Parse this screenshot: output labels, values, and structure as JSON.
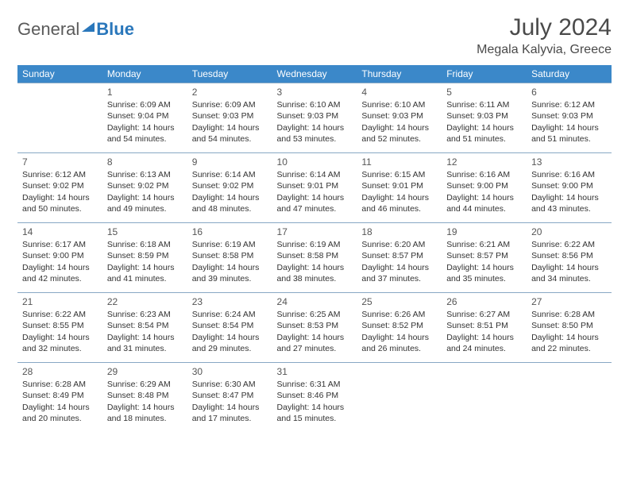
{
  "logo": {
    "text1": "General",
    "text2": "Blue"
  },
  "title": "July 2024",
  "location": "Megala Kalyvia, Greece",
  "colors": {
    "header_bg": "#3b88c9",
    "header_text": "#ffffff",
    "cell_border": "#88a8c4",
    "text": "#333333",
    "logo_gray": "#5a5a5a",
    "logo_blue": "#2a77bb"
  },
  "weekdays": [
    "Sunday",
    "Monday",
    "Tuesday",
    "Wednesday",
    "Thursday",
    "Friday",
    "Saturday"
  ],
  "weeks": [
    [
      null,
      {
        "d": "1",
        "rise": "6:09 AM",
        "set": "9:04 PM",
        "dl": "14 hours and 54 minutes."
      },
      {
        "d": "2",
        "rise": "6:09 AM",
        "set": "9:03 PM",
        "dl": "14 hours and 54 minutes."
      },
      {
        "d": "3",
        "rise": "6:10 AM",
        "set": "9:03 PM",
        "dl": "14 hours and 53 minutes."
      },
      {
        "d": "4",
        "rise": "6:10 AM",
        "set": "9:03 PM",
        "dl": "14 hours and 52 minutes."
      },
      {
        "d": "5",
        "rise": "6:11 AM",
        "set": "9:03 PM",
        "dl": "14 hours and 51 minutes."
      },
      {
        "d": "6",
        "rise": "6:12 AM",
        "set": "9:03 PM",
        "dl": "14 hours and 51 minutes."
      }
    ],
    [
      {
        "d": "7",
        "rise": "6:12 AM",
        "set": "9:02 PM",
        "dl": "14 hours and 50 minutes."
      },
      {
        "d": "8",
        "rise": "6:13 AM",
        "set": "9:02 PM",
        "dl": "14 hours and 49 minutes."
      },
      {
        "d": "9",
        "rise": "6:14 AM",
        "set": "9:02 PM",
        "dl": "14 hours and 48 minutes."
      },
      {
        "d": "10",
        "rise": "6:14 AM",
        "set": "9:01 PM",
        "dl": "14 hours and 47 minutes."
      },
      {
        "d": "11",
        "rise": "6:15 AM",
        "set": "9:01 PM",
        "dl": "14 hours and 46 minutes."
      },
      {
        "d": "12",
        "rise": "6:16 AM",
        "set": "9:00 PM",
        "dl": "14 hours and 44 minutes."
      },
      {
        "d": "13",
        "rise": "6:16 AM",
        "set": "9:00 PM",
        "dl": "14 hours and 43 minutes."
      }
    ],
    [
      {
        "d": "14",
        "rise": "6:17 AM",
        "set": "9:00 PM",
        "dl": "14 hours and 42 minutes."
      },
      {
        "d": "15",
        "rise": "6:18 AM",
        "set": "8:59 PM",
        "dl": "14 hours and 41 minutes."
      },
      {
        "d": "16",
        "rise": "6:19 AM",
        "set": "8:58 PM",
        "dl": "14 hours and 39 minutes."
      },
      {
        "d": "17",
        "rise": "6:19 AM",
        "set": "8:58 PM",
        "dl": "14 hours and 38 minutes."
      },
      {
        "d": "18",
        "rise": "6:20 AM",
        "set": "8:57 PM",
        "dl": "14 hours and 37 minutes."
      },
      {
        "d": "19",
        "rise": "6:21 AM",
        "set": "8:57 PM",
        "dl": "14 hours and 35 minutes."
      },
      {
        "d": "20",
        "rise": "6:22 AM",
        "set": "8:56 PM",
        "dl": "14 hours and 34 minutes."
      }
    ],
    [
      {
        "d": "21",
        "rise": "6:22 AM",
        "set": "8:55 PM",
        "dl": "14 hours and 32 minutes."
      },
      {
        "d": "22",
        "rise": "6:23 AM",
        "set": "8:54 PM",
        "dl": "14 hours and 31 minutes."
      },
      {
        "d": "23",
        "rise": "6:24 AM",
        "set": "8:54 PM",
        "dl": "14 hours and 29 minutes."
      },
      {
        "d": "24",
        "rise": "6:25 AM",
        "set": "8:53 PM",
        "dl": "14 hours and 27 minutes."
      },
      {
        "d": "25",
        "rise": "6:26 AM",
        "set": "8:52 PM",
        "dl": "14 hours and 26 minutes."
      },
      {
        "d": "26",
        "rise": "6:27 AM",
        "set": "8:51 PM",
        "dl": "14 hours and 24 minutes."
      },
      {
        "d": "27",
        "rise": "6:28 AM",
        "set": "8:50 PM",
        "dl": "14 hours and 22 minutes."
      }
    ],
    [
      {
        "d": "28",
        "rise": "6:28 AM",
        "set": "8:49 PM",
        "dl": "14 hours and 20 minutes."
      },
      {
        "d": "29",
        "rise": "6:29 AM",
        "set": "8:48 PM",
        "dl": "14 hours and 18 minutes."
      },
      {
        "d": "30",
        "rise": "6:30 AM",
        "set": "8:47 PM",
        "dl": "14 hours and 17 minutes."
      },
      {
        "d": "31",
        "rise": "6:31 AM",
        "set": "8:46 PM",
        "dl": "14 hours and 15 minutes."
      },
      null,
      null,
      null
    ]
  ],
  "labels": {
    "sunrise": "Sunrise: ",
    "sunset": "Sunset: ",
    "daylight": "Daylight: "
  }
}
